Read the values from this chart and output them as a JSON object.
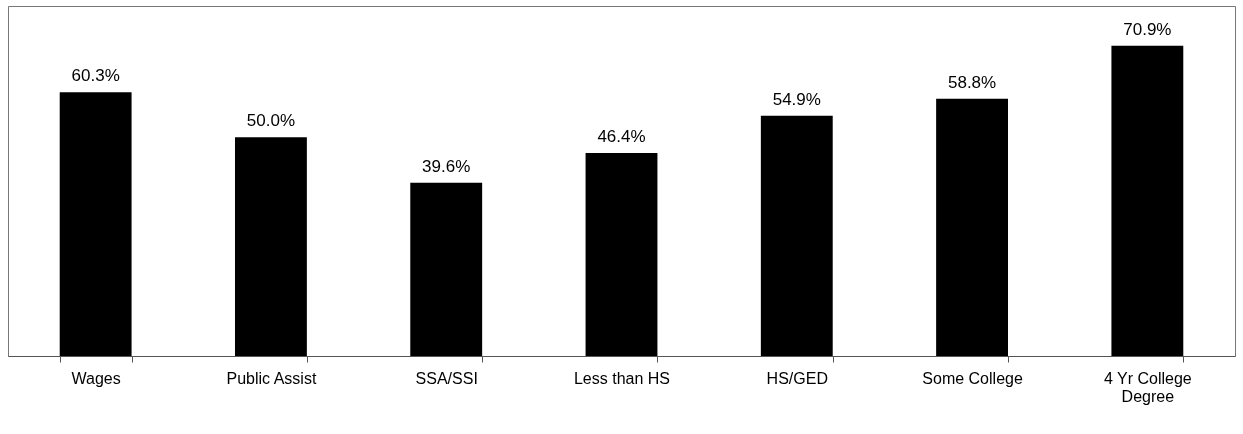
{
  "chart_data": {
    "type": "bar",
    "categories": [
      "Wages",
      "Public Assist",
      "SSA/SSI",
      "Less than HS",
      "HS/GED",
      "Some College",
      "4 Yr College Degree"
    ],
    "values": [
      60.3,
      50.0,
      39.6,
      46.4,
      54.9,
      58.8,
      70.9
    ],
    "value_labels": [
      "60.3%",
      "50.0%",
      "39.6%",
      "46.4%",
      "54.9%",
      "58.8%",
      "70.9%"
    ],
    "color": "#000000"
  }
}
